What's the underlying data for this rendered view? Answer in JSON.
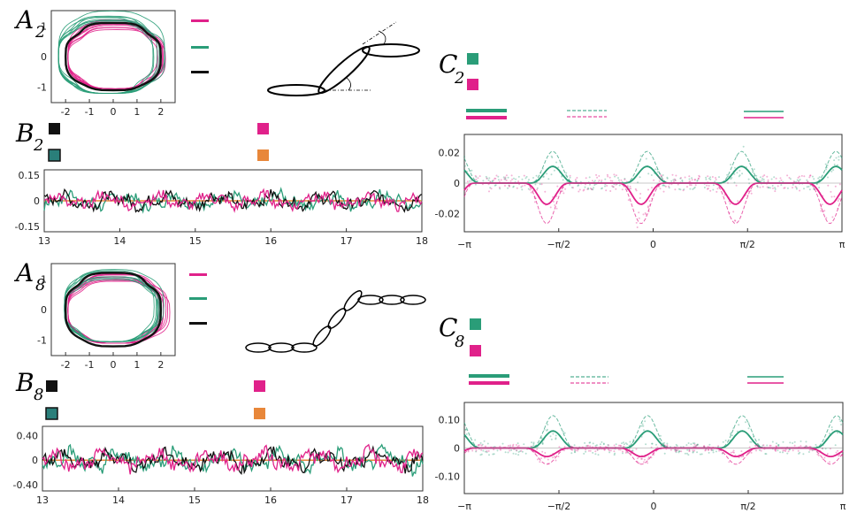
{
  "colors": {
    "magenta": "#e0218a",
    "green": "#2a9d78",
    "black": "#111111",
    "orange": "#e8873a",
    "teal_box": "#2a7f7a"
  },
  "panels": {
    "A2": {
      "letter": "A",
      "sub": "2"
    },
    "B2": {
      "letter": "B",
      "sub": "2"
    },
    "C2": {
      "letter": "C",
      "sub": "2"
    },
    "A8": {
      "letter": "A",
      "sub": "8"
    },
    "B8": {
      "letter": "B",
      "sub": "8"
    },
    "C8": {
      "letter": "C",
      "sub": "8"
    }
  },
  "chart_data": [
    {
      "id": "A2",
      "type": "line",
      "title": "",
      "xlim": [
        -2.6,
        2.6
      ],
      "ylim": [
        -1.5,
        1.5
      ],
      "x_ticks": [
        "-2",
        "-1",
        "0",
        "1",
        "2"
      ],
      "y_ticks": [
        "1",
        "0",
        "-1"
      ],
      "series": [
        {
          "name": "magenta",
          "color": "magenta",
          "kind": "loop",
          "cx": 0.1,
          "cy": 0.0,
          "ax": 2.0,
          "ay": 1.05,
          "count": 8
        },
        {
          "name": "green",
          "color": "green",
          "kind": "loop",
          "cx": -0.2,
          "cy": 0.05,
          "ax": 2.1,
          "ay": 1.25,
          "count": 8
        },
        {
          "name": "black",
          "color": "black",
          "kind": "loop",
          "cx": 0.0,
          "cy": 0.0,
          "ax": 2.0,
          "ay": 1.1,
          "count": 1
        }
      ]
    },
    {
      "id": "B2",
      "type": "line",
      "xlim": [
        13,
        18
      ],
      "ylim": [
        -0.18,
        0.18
      ],
      "x_ticks": [
        "13",
        "14",
        "15",
        "16",
        "17",
        "18"
      ],
      "y_ticks": [
        "0.15",
        "0",
        "-0.15"
      ],
      "y_tick_values": [
        0.15,
        0,
        -0.15
      ],
      "series": [
        {
          "name": "orange",
          "color": "orange",
          "kind": "flat",
          "value": 0
        },
        {
          "name": "green",
          "color": "green",
          "kind": "noise",
          "amp": 0.055
        },
        {
          "name": "black",
          "color": "black",
          "kind": "noise",
          "amp": 0.05
        },
        {
          "name": "magenta",
          "color": "magenta",
          "kind": "noise",
          "amp": 0.05
        }
      ]
    },
    {
      "id": "C2",
      "type": "line",
      "xlim": [
        -3.14159,
        3.14159
      ],
      "ylim": [
        -0.032,
        0.032
      ],
      "x_ticks": [
        "−π",
        "−π/2",
        "0",
        "π/2",
        "π"
      ],
      "y_ticks": [
        "0.02",
        "0",
        "-0.02"
      ],
      "y_tick_values": [
        0.02,
        0,
        -0.02
      ],
      "series": [
        {
          "name": "green mean",
          "color": "green",
          "kind": "wave",
          "amp": 0.011,
          "phase": 0.4
        },
        {
          "name": "magenta mean",
          "color": "magenta",
          "kind": "wave",
          "amp": -0.014,
          "phase": 0.8
        }
      ]
    },
    {
      "id": "A8",
      "type": "line",
      "xlim": [
        -2.6,
        2.6
      ],
      "ylim": [
        -1.5,
        1.5
      ],
      "x_ticks": [
        "-2",
        "-1",
        "0",
        "1",
        "2"
      ],
      "y_ticks": [
        "1",
        "0",
        "-1"
      ],
      "series": [
        {
          "name": "magenta",
          "color": "magenta",
          "kind": "loop",
          "cx": 0.15,
          "cy": 0.0,
          "ax": 2.05,
          "ay": 1.1,
          "count": 8
        },
        {
          "name": "green",
          "color": "green",
          "kind": "loop",
          "cx": -0.1,
          "cy": 0.05,
          "ax": 1.95,
          "ay": 1.1,
          "count": 8
        },
        {
          "name": "black",
          "color": "black",
          "kind": "loop",
          "cx": 0.0,
          "cy": 0.0,
          "ax": 2.0,
          "ay": 1.2,
          "count": 1
        }
      ]
    },
    {
      "id": "B8",
      "type": "line",
      "xlim": [
        13,
        18
      ],
      "ylim": [
        -0.5,
        0.55
      ],
      "x_ticks": [
        "13",
        "14",
        "15",
        "16",
        "17",
        "18"
      ],
      "y_ticks": [
        "0.40",
        "0",
        "-0.40"
      ],
      "y_tick_values": [
        0.4,
        0,
        -0.4
      ],
      "series": [
        {
          "name": "orange",
          "color": "orange",
          "kind": "flat",
          "value": 0
        },
        {
          "name": "green",
          "color": "green",
          "kind": "noise",
          "amp": 0.19
        },
        {
          "name": "black",
          "color": "black",
          "kind": "noise",
          "amp": 0.17
        },
        {
          "name": "magenta",
          "color": "magenta",
          "kind": "noise",
          "amp": 0.18
        }
      ]
    },
    {
      "id": "C8",
      "type": "line",
      "xlim": [
        -3.14159,
        3.14159
      ],
      "ylim": [
        -0.16,
        0.16
      ],
      "x_ticks": [
        "−π",
        "−π/2",
        "0",
        "π/2",
        "π"
      ],
      "y_ticks": [
        "0.10",
        "0",
        "-0.10"
      ],
      "y_tick_values": [
        0.1,
        0,
        -0.1
      ],
      "series": [
        {
          "name": "green mean",
          "color": "green",
          "kind": "wave",
          "amp": 0.06,
          "phase": 0.4
        },
        {
          "name": "magenta mean",
          "color": "magenta",
          "kind": "wave",
          "amp": -0.03,
          "phase": 0.8
        }
      ]
    }
  ]
}
